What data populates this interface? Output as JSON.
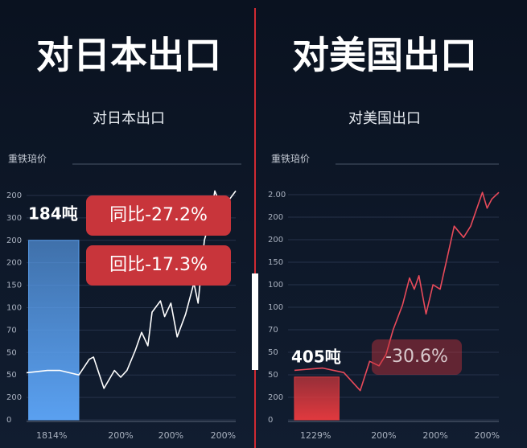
{
  "chart_data": [
    {
      "type": "combo",
      "title": "对日本出口",
      "subtitle": "对日本出口",
      "y_label": "重铁琣价",
      "ylim": [
        0,
        10.5
      ],
      "yticks": [
        0,
        {
          "value": 1,
          "label": "200"
        },
        {
          "value": 2,
          "label": "50"
        },
        {
          "value": 3,
          "label": "50"
        },
        {
          "value": 4,
          "label": "70"
        },
        {
          "value": 5,
          "label": "100"
        },
        {
          "value": 6,
          "label": "150"
        },
        {
          "value": 7,
          "label": "200"
        },
        {
          "value": 8,
          "label": "200"
        },
        {
          "value": 9,
          "label": "300"
        },
        {
          "value": 10,
          "label": "200"
        }
      ],
      "xlim": [
        0,
        10
      ],
      "xticks": [
        {
          "value": 1.2,
          "label": "1814%"
        },
        {
          "value": 4.5,
          "label": "200%"
        },
        {
          "value": 6.9,
          "label": "200%"
        },
        {
          "value": 9.4,
          "label": "200%"
        }
      ],
      "bar": {
        "value": 8,
        "x": [
          0.1,
          2.5
        ],
        "label": "184吨",
        "color": "#5aa0f0"
      },
      "line": {
        "color": "#ffffff",
        "x": [
          0,
          1,
          1.6,
          2.5,
          3,
          3.2,
          3.7,
          4.2,
          4.5,
          4.8,
          5.2,
          5.5,
          5.8,
          6.0,
          6.4,
          6.6,
          6.9,
          7.2,
          7.6,
          8.0,
          8.2,
          8.5,
          8.8,
          9.0,
          9.3,
          9.6,
          10
        ],
        "values": [
          2.1,
          2.2,
          2.2,
          2.0,
          2.7,
          2.8,
          1.4,
          2.2,
          1.9,
          2.2,
          3.1,
          3.9,
          3.3,
          4.8,
          5.3,
          4.6,
          5.2,
          3.7,
          4.7,
          6.1,
          5.2,
          8.0,
          9.0,
          10.2,
          9.5,
          9.7,
          10.2
        ]
      },
      "annotations": [
        "同比-27.2%",
        "回比-17.3%"
      ]
    },
    {
      "type": "combo",
      "title": "对美国出口",
      "subtitle": "对美国出口",
      "y_label": "重铁琣价",
      "ylim": [
        0,
        10.5
      ],
      "yticks": [
        0,
        {
          "value": 1,
          "label": "200"
        },
        {
          "value": 2,
          "label": "50"
        },
        {
          "value": 3,
          "label": "50"
        },
        {
          "value": 4,
          "label": "70"
        },
        {
          "value": 5,
          "label": "100"
        },
        {
          "value": 6,
          "label": "100"
        },
        {
          "value": 7,
          "label": "150"
        },
        {
          "value": 8,
          "label": "200"
        },
        {
          "value": 9,
          "label": "200"
        },
        {
          "value": 10,
          "label": "2.00"
        }
      ],
      "xlim": [
        0,
        10
      ],
      "xticks": [
        {
          "value": 2.2,
          "label": "1229%"
        },
        {
          "value": 5.1,
          "label": "200%"
        },
        {
          "value": 7.3,
          "label": "200%"
        },
        {
          "value": 9.5,
          "label": "200%"
        }
      ],
      "bar": {
        "value": 1.9,
        "x": [
          1.3,
          3.2
        ],
        "label": "405吨",
        "color": "#e0393e"
      },
      "line": {
        "color": "#e84a5a",
        "x": [
          1.3,
          2.5,
          3.4,
          4.1,
          4.5,
          4.9,
          5.2,
          5.5,
          5.9,
          6.2,
          6.4,
          6.6,
          6.9,
          7.2,
          7.5,
          7.8,
          8.1,
          8.5,
          8.8,
          9.3,
          9.5,
          9.7,
          10
        ],
        "values": [
          2.2,
          2.3,
          2.1,
          1.3,
          2.6,
          2.4,
          2.9,
          4.0,
          5.1,
          6.3,
          5.8,
          6.4,
          4.7,
          6.0,
          5.8,
          7.2,
          8.6,
          8.1,
          8.6,
          10.1,
          9.4,
          9.8,
          10.1
        ]
      },
      "annotations": [
        "-30.6%"
      ]
    }
  ]
}
